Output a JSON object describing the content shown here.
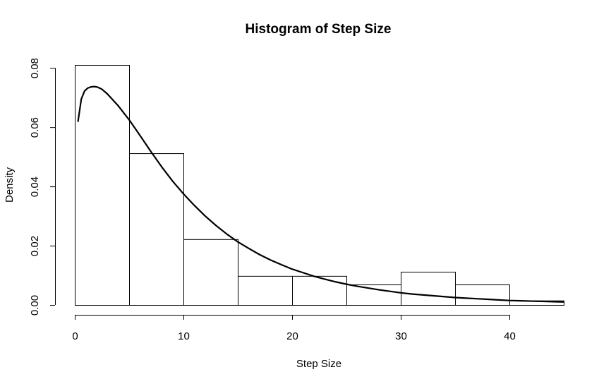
{
  "chart_data": {
    "type": "bar",
    "title": "Histogram of Step Size",
    "xlabel": "Step Size",
    "ylabel": "Density",
    "bins": [
      {
        "start": 0,
        "end": 5,
        "density": 0.081
      },
      {
        "start": 5,
        "end": 10,
        "density": 0.0512
      },
      {
        "start": 10,
        "end": 15,
        "density": 0.0222
      },
      {
        "start": 15,
        "end": 20,
        "density": 0.0098
      },
      {
        "start": 20,
        "end": 25,
        "density": 0.0098
      },
      {
        "start": 25,
        "end": 30,
        "density": 0.0069
      },
      {
        "start": 30,
        "end": 35,
        "density": 0.0112
      },
      {
        "start": 35,
        "end": 40,
        "density": 0.0069
      },
      {
        "start": 40,
        "end": 45,
        "density": 0.0015
      }
    ],
    "density_curve": {
      "x": [
        0.3,
        0.6,
        0.9,
        1.2,
        1.5,
        1.8,
        2.1,
        2.5,
        3,
        3.5,
        4,
        5,
        6,
        7,
        8,
        9,
        10,
        11,
        12,
        13,
        14,
        15,
        16,
        17,
        18,
        19,
        20,
        21,
        22,
        23,
        24,
        25,
        26,
        27,
        28,
        29,
        30,
        31,
        32,
        33,
        34,
        35,
        36,
        37,
        38,
        39,
        40,
        41,
        42,
        43,
        44,
        45
      ],
      "y": [
        0.062,
        0.0695,
        0.0722,
        0.0732,
        0.0736,
        0.0737,
        0.0735,
        0.0728,
        0.0712,
        0.0692,
        0.0672,
        0.0625,
        0.0572,
        0.0518,
        0.0466,
        0.0418,
        0.0375,
        0.0336,
        0.03,
        0.0268,
        0.0239,
        0.0213,
        0.0191,
        0.017,
        0.0152,
        0.0136,
        0.0121,
        0.0109,
        0.0097,
        0.0087,
        0.0078,
        0.007,
        0.0063,
        0.0057,
        0.0051,
        0.0046,
        0.0041,
        0.0037,
        0.0034,
        0.0031,
        0.0028,
        0.0025,
        0.0023,
        0.0021,
        0.0019,
        0.0017,
        0.0015,
        0.0014,
        0.0013,
        0.0012,
        0.0011,
        0.001
      ]
    },
    "xlim": [
      0,
      45
    ],
    "ylim": [
      0,
      0.081
    ],
    "x_ticks": [
      0,
      10,
      20,
      30,
      40
    ],
    "x_tick_labels": [
      "0",
      "10",
      "20",
      "30",
      "40"
    ],
    "y_ticks": [
      0,
      0.02,
      0.04,
      0.06,
      0.08
    ],
    "y_tick_labels": [
      "0.00",
      "0.02",
      "0.04",
      "0.06",
      "0.08"
    ],
    "grid": false
  }
}
